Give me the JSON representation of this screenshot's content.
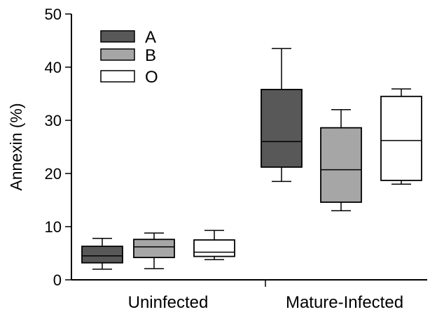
{
  "chart_data": {
    "type": "box",
    "title": "",
    "xlabel": "",
    "ylabel": "Annexin (%)",
    "ylim": [
      0,
      50
    ],
    "yticks": [
      0,
      10,
      20,
      30,
      40,
      50
    ],
    "grid": false,
    "legend_position": "top-left",
    "categories": [
      "Uninfected",
      "Mature-Infected"
    ],
    "series": [
      {
        "name": "A",
        "color": "#585858",
        "boxes": [
          {
            "whisker_low": 2.0,
            "q1": 3.2,
            "median": 4.5,
            "q3": 6.3,
            "whisker_high": 7.8
          },
          {
            "whisker_low": 18.5,
            "q1": 21.2,
            "median": 26.0,
            "q3": 35.8,
            "whisker_high": 43.5
          }
        ]
      },
      {
        "name": "B",
        "color": "#a6a6a6",
        "boxes": [
          {
            "whisker_low": 2.1,
            "q1": 4.2,
            "median": 6.2,
            "q3": 7.6,
            "whisker_high": 8.8
          },
          {
            "whisker_low": 13.0,
            "q1": 14.6,
            "median": 20.7,
            "q3": 28.6,
            "whisker_high": 32.0
          }
        ]
      },
      {
        "name": "O",
        "color": "#ffffff",
        "boxes": [
          {
            "whisker_low": 3.8,
            "q1": 4.4,
            "median": 5.2,
            "q3": 7.5,
            "whisker_high": 9.3
          },
          {
            "whisker_low": 18.0,
            "q1": 18.7,
            "median": 26.2,
            "q3": 34.5,
            "whisker_high": 35.9
          }
        ]
      }
    ]
  }
}
